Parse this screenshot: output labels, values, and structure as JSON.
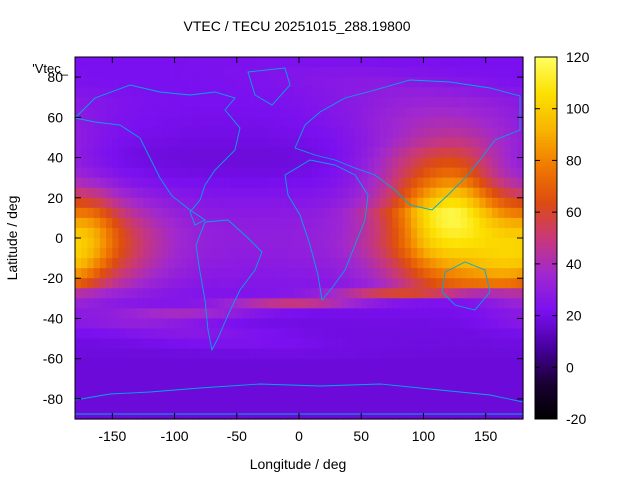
{
  "chart_data": {
    "type": "heatmap",
    "title": "VTEC / TECU 20251015_288.19800",
    "xlabel": "Longitude / deg",
    "ylabel": "Latitude / deg",
    "series_label": "'Vtec_",
    "xlim": [
      -180,
      180
    ],
    "ylim": [
      -90,
      90
    ],
    "x_ticks": [
      "-150",
      "-100",
      "-50",
      "0",
      "50",
      "100",
      "150"
    ],
    "y_ticks": [
      "-80",
      "-60",
      "-40",
      "-20",
      "0",
      "20",
      "40",
      "60",
      "80"
    ],
    "colorbar": {
      "range": [
        -20,
        120
      ],
      "ticks": [
        "-20",
        "0",
        "20",
        "40",
        "60",
        "80",
        "100",
        "120"
      ],
      "palette": [
        "#000000",
        "#1a0033",
        "#4800a0",
        "#7a10f0",
        "#a028d0",
        "#c8387a",
        "#dd4c10",
        "#f07a00",
        "#f8b400",
        "#fce000",
        "#ffff60"
      ]
    },
    "coastline_color": "#00a8e0",
    "grid": false,
    "bands": [
      {
        "lat": 90,
        "base": 22,
        "peak": 0,
        "center_lon": 0,
        "width": 60
      },
      {
        "lat": 70,
        "base": 22,
        "peak": 10,
        "center_lon": 110,
        "width": 60
      },
      {
        "lat": 50,
        "base": 20,
        "peak": 25,
        "center_lon": 120,
        "width": 45
      },
      {
        "lat": 40,
        "base": 18,
        "peak": 40,
        "center_lon": 115,
        "width": 40
      },
      {
        "lat": 30,
        "base": 20,
        "peak": 48,
        "center_lon": 115,
        "width": 38
      },
      {
        "lat": 20,
        "base": 25,
        "peak": 60,
        "center_lon": 120,
        "width": 38
      },
      {
        "lat": 12,
        "base": 28,
        "peak": 72,
        "center_lon": 120,
        "width": 40
      },
      {
        "lat": 5,
        "base": 30,
        "peak": 70,
        "center_lon": 125,
        "width": 40
      },
      {
        "lat": -5,
        "base": 30,
        "peak": 65,
        "center_lon": 125,
        "width": 42
      },
      {
        "lat": -15,
        "base": 28,
        "peak": 55,
        "center_lon": 130,
        "width": 42
      },
      {
        "lat": -25,
        "base": 25,
        "peak": 40,
        "center_lon": 130,
        "width": 40
      },
      {
        "lat": -40,
        "base": 20,
        "peak": 12,
        "center_lon": -140,
        "width": 40
      },
      {
        "lat": -60,
        "base": 18,
        "peak": 0,
        "center_lon": 0,
        "width": 60
      },
      {
        "lat": -90,
        "base": 18,
        "peak": 0,
        "center_lon": 0,
        "width": 60
      }
    ],
    "hotspots": [
      {
        "lon": -165,
        "lat": 7,
        "value": 82
      },
      {
        "lon": -178,
        "lat": -12,
        "value": 82
      },
      {
        "lon": -145,
        "lat": -12,
        "value": 60
      },
      {
        "lon": 130,
        "lat": 18,
        "value": 82
      },
      {
        "lon": 105,
        "lat": 8,
        "value": 78
      },
      {
        "lon": 160,
        "lat": -12,
        "value": 75
      }
    ]
  }
}
